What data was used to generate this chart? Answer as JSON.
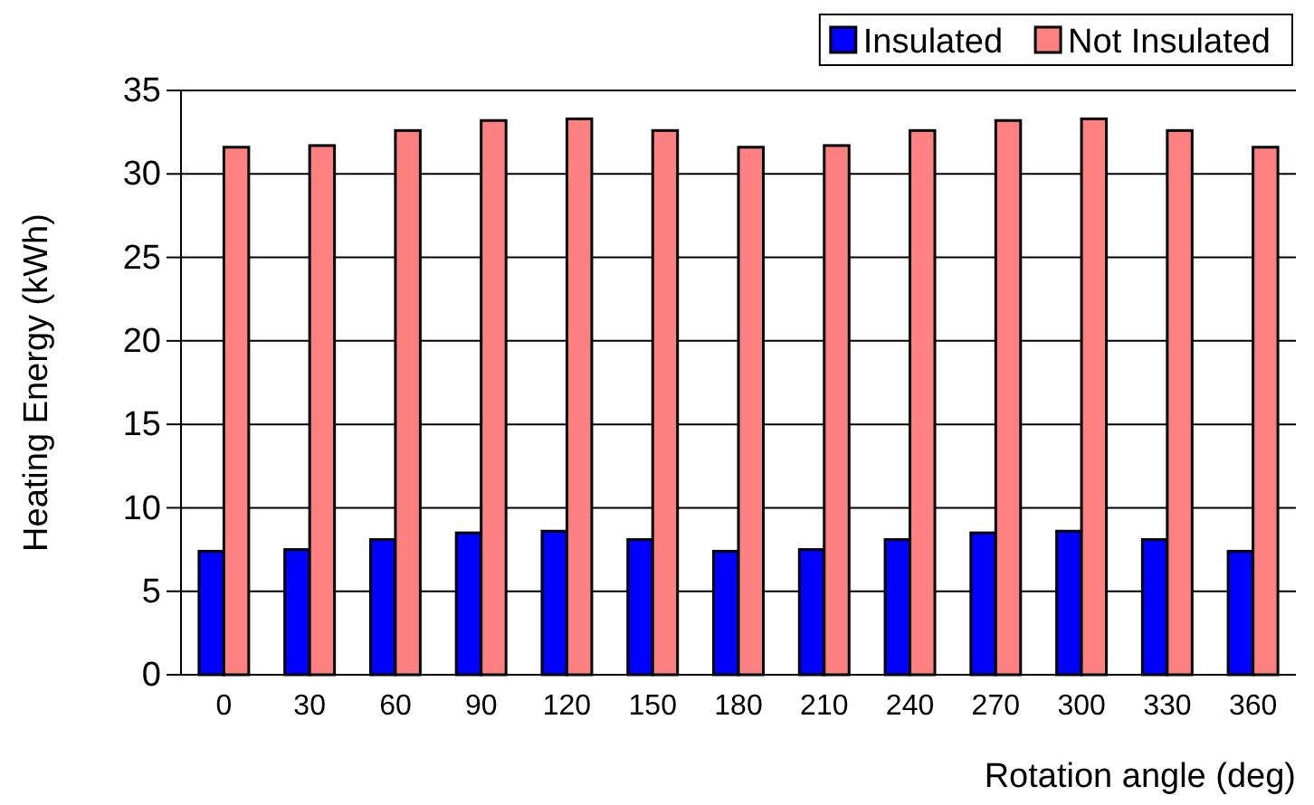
{
  "chart_data": {
    "type": "bar",
    "xlabel": "Rotation angle (deg)",
    "ylabel": "Heating Energy (kWh)",
    "categories": [
      "0",
      "30",
      "60",
      "90",
      "120",
      "150",
      "180",
      "210",
      "240",
      "270",
      "300",
      "330",
      "360"
    ],
    "series": [
      {
        "name": "Insulated",
        "color": "#0000ff",
        "values": [
          7.4,
          7.5,
          8.1,
          8.5,
          8.6,
          8.1,
          7.4,
          7.5,
          8.1,
          8.5,
          8.6,
          8.1,
          7.4
        ]
      },
      {
        "name": "Not Insulated",
        "color": "#ff8080",
        "values": [
          31.6,
          31.7,
          32.6,
          33.2,
          33.3,
          32.6,
          31.6,
          31.7,
          32.6,
          33.2,
          33.3,
          32.6,
          31.6
        ]
      }
    ],
    "ylim": [
      0,
      35
    ],
    "yticks": [
      0,
      5,
      10,
      15,
      20,
      25,
      30,
      35
    ],
    "grid": "y",
    "legend": "top right"
  }
}
